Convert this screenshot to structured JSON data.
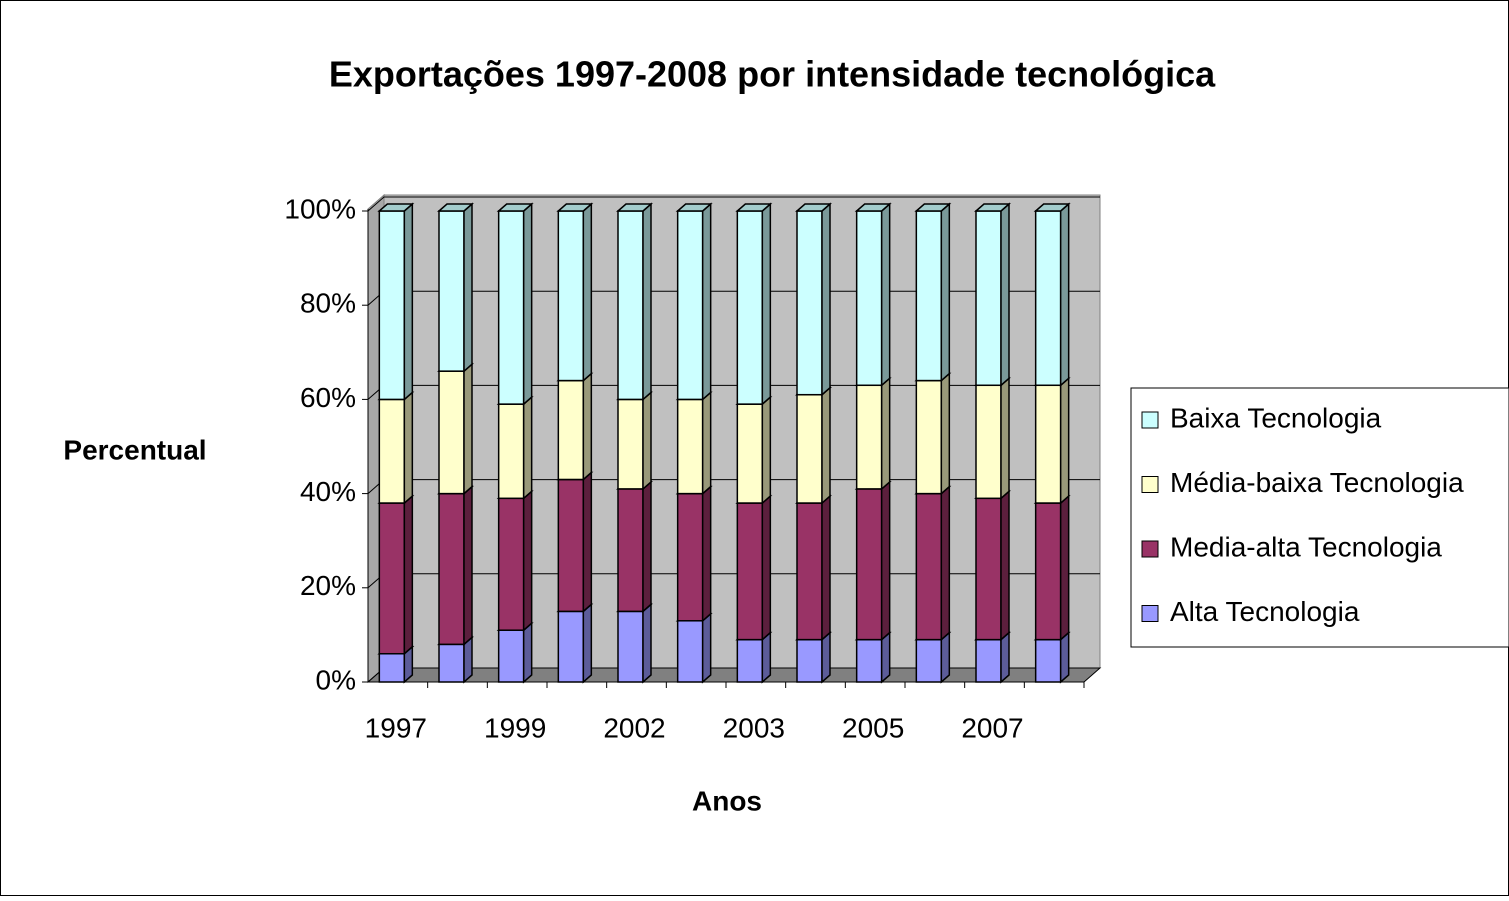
{
  "chart_data": {
    "type": "stacked_bar_3d",
    "title": "Exportações 1997-2008 por intensidade tecnológica",
    "x_label": "Anos",
    "y_label": "Percentual",
    "categories": [
      "1997",
      null,
      "1999",
      null,
      "2002",
      null,
      "2003",
      null,
      "2005",
      null,
      "2007",
      null
    ],
    "series": [
      {
        "name": "Alta Tecnologia",
        "color": "#9999ff",
        "values": [
          6,
          8,
          11,
          15,
          15,
          13,
          9,
          9,
          9,
          9,
          9,
          9
        ]
      },
      {
        "name": "Media-alta Tecnologia",
        "color": "#993366",
        "values": [
          32,
          32,
          28,
          28,
          26,
          27,
          29,
          29,
          32,
          31,
          30,
          29
        ]
      },
      {
        "name": "Média-baixa Tecnologia",
        "color": "#ffffcc",
        "values": [
          22,
          26,
          20,
          21,
          19,
          20,
          21,
          23,
          22,
          24,
          24,
          25
        ]
      },
      {
        "name": "Baixa Tecnologia",
        "color": "#ccffff",
        "values": [
          40,
          34,
          41,
          36,
          40,
          40,
          41,
          39,
          37,
          36,
          37,
          37
        ]
      }
    ],
    "ylim": [
      0,
      100
    ],
    "yticks": [
      {
        "value": 0,
        "label": "0%"
      },
      {
        "value": 20,
        "label": "20%"
      },
      {
        "value": 40,
        "label": "40%"
      },
      {
        "value": 60,
        "label": "60%"
      },
      {
        "value": 80,
        "label": "80%"
      },
      {
        "value": 100,
        "label": "100%"
      }
    ],
    "grid": true,
    "legend": "right"
  }
}
